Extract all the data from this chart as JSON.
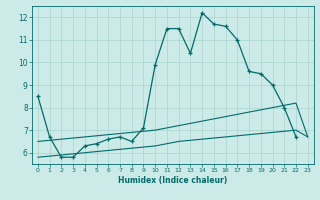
{
  "xlabel": "Humidex (Indice chaleur)",
  "bg_color": "#cceae7",
  "grid_color": "#aad4d0",
  "line_color": "#006b6b",
  "xlim": [
    -0.5,
    23.5
  ],
  "ylim": [
    5.5,
    12.5
  ],
  "xticks": [
    0,
    1,
    2,
    3,
    4,
    5,
    6,
    7,
    8,
    9,
    10,
    11,
    12,
    13,
    14,
    15,
    16,
    17,
    18,
    19,
    20,
    21,
    22,
    23
  ],
  "yticks": [
    6,
    7,
    8,
    9,
    10,
    11,
    12
  ],
  "line1_x": [
    0,
    1,
    2,
    3,
    4,
    5,
    6,
    7,
    8,
    9,
    10,
    11,
    12,
    13,
    14,
    15,
    16,
    17,
    18,
    19,
    20,
    21,
    22
  ],
  "line1_y": [
    8.5,
    6.7,
    5.8,
    5.8,
    6.3,
    6.4,
    6.6,
    6.7,
    6.5,
    7.1,
    9.9,
    11.5,
    11.5,
    10.4,
    12.2,
    11.7,
    11.6,
    11.0,
    9.6,
    9.5,
    9.0,
    8.0,
    6.7
  ],
  "line2_x": [
    0,
    1,
    2,
    3,
    4,
    5,
    6,
    7,
    8,
    9,
    10,
    11,
    12,
    13,
    14,
    15,
    16,
    17,
    18,
    19,
    20,
    21,
    22,
    23
  ],
  "line2_y": [
    6.5,
    6.55,
    6.6,
    6.65,
    6.7,
    6.75,
    6.8,
    6.85,
    6.9,
    6.95,
    7.0,
    7.1,
    7.2,
    7.3,
    7.4,
    7.5,
    7.6,
    7.7,
    7.8,
    7.9,
    8.0,
    8.1,
    8.2,
    6.7
  ],
  "line3_x": [
    0,
    1,
    2,
    3,
    4,
    5,
    6,
    7,
    8,
    9,
    10,
    11,
    12,
    13,
    14,
    15,
    16,
    17,
    18,
    19,
    20,
    21,
    22,
    23
  ],
  "line3_y": [
    5.8,
    5.85,
    5.9,
    5.95,
    6.0,
    6.05,
    6.1,
    6.15,
    6.2,
    6.25,
    6.3,
    6.4,
    6.5,
    6.55,
    6.6,
    6.65,
    6.7,
    6.75,
    6.8,
    6.85,
    6.9,
    6.95,
    7.0,
    6.7
  ]
}
